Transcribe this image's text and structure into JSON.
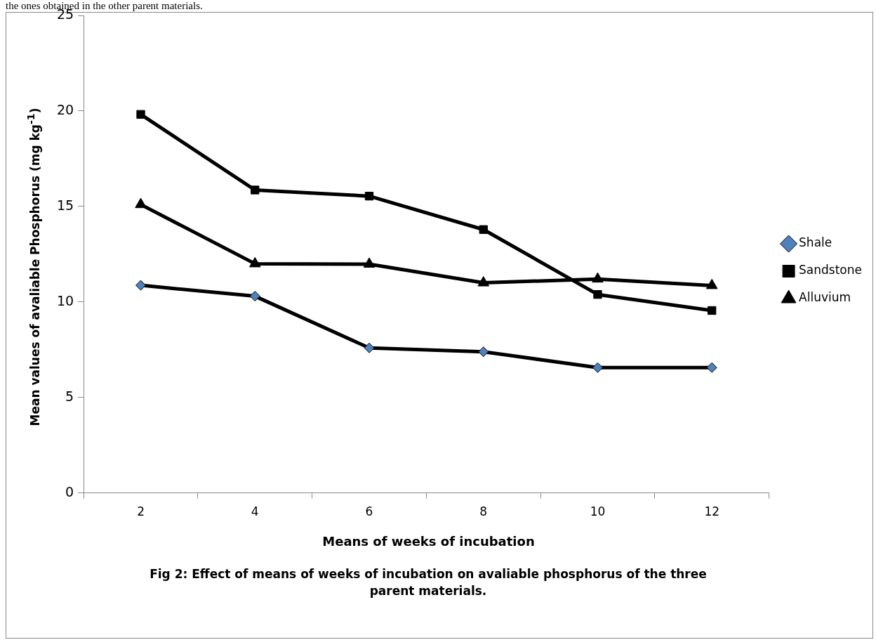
{
  "chart_data": {
    "type": "line",
    "title": "Fig 2: Effect of means of weeks of incubation on avaliable phosphorus of the three parent materials.",
    "xlabel": "Means of weeks of incubation",
    "ylabel": "Mean values of avaliable Phosphorus (mg kg$^{-1}$)",
    "annotations": [
      "the ones obtained in the other parent materials."
    ],
    "categories": [
      "2",
      "4",
      "6",
      "8",
      "10",
      "12"
    ],
    "series": [
      {
        "name": "Shale",
        "color": "#4f81bd",
        "marker": "diamond",
        "values": [
          10.87,
          10.3,
          7.59,
          7.39,
          6.56,
          6.56
        ]
      },
      {
        "name": "Sandstone",
        "color": "#000000",
        "marker": "square",
        "values": [
          19.82,
          15.86,
          15.54,
          13.79,
          10.39,
          9.55
        ]
      },
      {
        "name": "Alluvium",
        "color": "#000000",
        "marker": "triangle",
        "values": [
          15.1,
          12.0,
          11.98,
          11.0,
          11.2,
          10.86
        ]
      }
    ],
    "ylim": [
      0,
      25
    ],
    "yticks": [
      0,
      5,
      10,
      15,
      20,
      25
    ],
    "grid": false,
    "legend": "right",
    "line_style": "solid"
  }
}
